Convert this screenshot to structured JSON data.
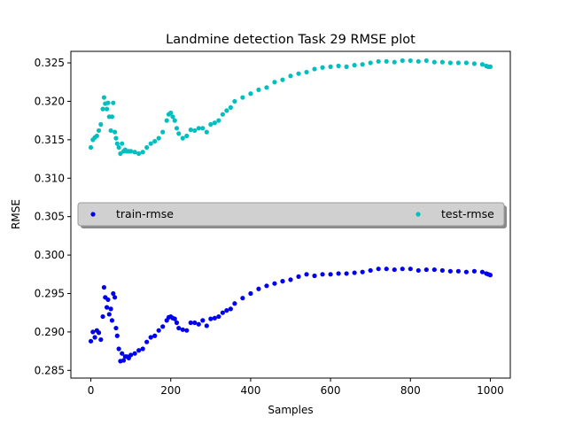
{
  "chart_data": {
    "type": "scatter",
    "title": "Landmine detection Task 29 RMSE plot",
    "xlabel": "Samples",
    "ylabel": "RMSE",
    "xlim": [
      -50,
      1050
    ],
    "ylim": [
      0.284,
      0.3265
    ],
    "xticks": [
      0,
      200,
      400,
      600,
      800,
      1000
    ],
    "yticks": [
      0.285,
      0.29,
      0.295,
      0.3,
      0.305,
      0.31,
      0.315,
      0.32,
      0.325
    ],
    "grid": false,
    "legend": {
      "placement": "center",
      "ncol": 2
    },
    "series": [
      {
        "name": "train-rmse",
        "color": "#0000ee",
        "x": [
          0,
          5,
          10,
          15,
          20,
          25,
          30,
          33,
          36,
          40,
          43,
          46,
          50,
          53,
          56,
          60,
          63,
          66,
          70,
          74,
          78,
          82,
          86,
          90,
          95,
          100,
          110,
          120,
          130,
          140,
          150,
          160,
          170,
          180,
          190,
          195,
          200,
          205,
          210,
          215,
          220,
          230,
          240,
          250,
          260,
          270,
          280,
          290,
          300,
          310,
          320,
          330,
          340,
          350,
          360,
          380,
          400,
          420,
          440,
          460,
          480,
          500,
          520,
          540,
          560,
          580,
          600,
          620,
          640,
          660,
          680,
          700,
          720,
          740,
          760,
          780,
          800,
          820,
          840,
          860,
          880,
          900,
          920,
          940,
          960,
          980,
          990,
          995,
          1000
        ],
        "y": [
          0.2888,
          0.29,
          0.2893,
          0.2902,
          0.2899,
          0.289,
          0.292,
          0.2958,
          0.2945,
          0.2932,
          0.2942,
          0.2923,
          0.293,
          0.2915,
          0.295,
          0.2945,
          0.2905,
          0.2895,
          0.2878,
          0.2862,
          0.2872,
          0.2863,
          0.2868,
          0.2868,
          0.2866,
          0.287,
          0.2872,
          0.2876,
          0.2878,
          0.2887,
          0.2893,
          0.2895,
          0.2902,
          0.2907,
          0.2915,
          0.2919,
          0.292,
          0.2918,
          0.2917,
          0.2912,
          0.2905,
          0.2903,
          0.2902,
          0.2912,
          0.2912,
          0.291,
          0.2915,
          0.2908,
          0.2917,
          0.2918,
          0.292,
          0.2925,
          0.2928,
          0.293,
          0.2937,
          0.2944,
          0.295,
          0.2956,
          0.296,
          0.2963,
          0.2966,
          0.2968,
          0.2972,
          0.2975,
          0.2973,
          0.2975,
          0.2975,
          0.2976,
          0.2976,
          0.2977,
          0.2978,
          0.298,
          0.2982,
          0.2982,
          0.2981,
          0.2982,
          0.2982,
          0.298,
          0.2981,
          0.2981,
          0.298,
          0.2979,
          0.2979,
          0.2978,
          0.2979,
          0.2978,
          0.2976,
          0.2975,
          0.2974
        ]
      },
      {
        "name": "test-rmse",
        "color": "#00bfbf",
        "x": [
          0,
          5,
          10,
          15,
          20,
          25,
          30,
          33,
          36,
          40,
          43,
          46,
          50,
          53,
          56,
          60,
          63,
          66,
          70,
          74,
          78,
          82,
          86,
          90,
          95,
          100,
          110,
          120,
          130,
          140,
          150,
          160,
          170,
          180,
          190,
          195,
          200,
          205,
          210,
          215,
          220,
          230,
          240,
          250,
          260,
          270,
          280,
          290,
          300,
          310,
          320,
          330,
          340,
          350,
          360,
          380,
          400,
          420,
          440,
          460,
          480,
          500,
          520,
          540,
          560,
          580,
          600,
          620,
          640,
          660,
          680,
          700,
          720,
          740,
          760,
          780,
          800,
          820,
          840,
          860,
          880,
          900,
          920,
          940,
          960,
          980,
          990,
          995,
          1000
        ],
        "y": [
          0.314,
          0.315,
          0.3153,
          0.3155,
          0.3162,
          0.317,
          0.319,
          0.3205,
          0.3197,
          0.319,
          0.3198,
          0.318,
          0.3162,
          0.318,
          0.3198,
          0.316,
          0.3152,
          0.3145,
          0.314,
          0.3132,
          0.3145,
          0.3135,
          0.3137,
          0.3135,
          0.3135,
          0.3135,
          0.3134,
          0.3132,
          0.3134,
          0.314,
          0.3145,
          0.3148,
          0.3152,
          0.316,
          0.3175,
          0.3183,
          0.3185,
          0.318,
          0.3175,
          0.3165,
          0.3158,
          0.3152,
          0.3155,
          0.3163,
          0.3162,
          0.3165,
          0.3165,
          0.316,
          0.317,
          0.3172,
          0.3175,
          0.3183,
          0.3188,
          0.3192,
          0.32,
          0.3205,
          0.321,
          0.3215,
          0.3218,
          0.3225,
          0.3228,
          0.3233,
          0.3236,
          0.3238,
          0.3242,
          0.3244,
          0.3245,
          0.3246,
          0.3245,
          0.3247,
          0.3248,
          0.325,
          0.3252,
          0.3252,
          0.3251,
          0.3253,
          0.3253,
          0.3252,
          0.3253,
          0.3251,
          0.3251,
          0.325,
          0.325,
          0.325,
          0.3249,
          0.3248,
          0.3246,
          0.3245,
          0.3245
        ]
      }
    ]
  }
}
